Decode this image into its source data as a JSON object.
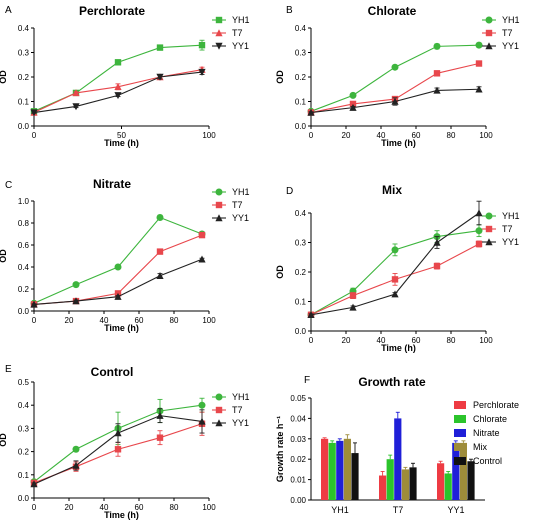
{
  "chart_data": [
    {
      "panel": "A",
      "type": "line",
      "title": "Perchlorate",
      "xlabel": "Time (h)",
      "ylabel": "OD",
      "xlim": [
        0,
        100
      ],
      "ylim": [
        0,
        0.4
      ],
      "xticks": [
        "0",
        "50",
        "100"
      ],
      "yticks": [
        "0.0",
        "0.1",
        "0.2",
        "0.3",
        "0.4"
      ],
      "legend": "right",
      "x": [
        0,
        24,
        48,
        72,
        96
      ],
      "series": [
        {
          "name": "YH1",
          "color": "#3db53d",
          "marker": "square",
          "values": [
            0.06,
            0.135,
            0.26,
            0.32,
            0.33
          ],
          "errors": [
            0.005,
            0.005,
            0.005,
            0.01,
            0.02
          ]
        },
        {
          "name": "T7",
          "color": "#e8474c",
          "marker": "triangle-up",
          "values": [
            0.055,
            0.135,
            0.16,
            0.2,
            0.23
          ],
          "errors": [
            0.005,
            0.005,
            0.012,
            0.01,
            0.01
          ]
        },
        {
          "name": "YY1",
          "color": "#222222",
          "marker": "triangle-down",
          "values": [
            0.055,
            0.08,
            0.125,
            0.2,
            0.22
          ],
          "errors": [
            0.003,
            0.005,
            0.005,
            0.008,
            0.01
          ]
        }
      ]
    },
    {
      "panel": "B",
      "type": "line",
      "title": "Chlorate",
      "xlabel": "Time (h)",
      "ylabel": "OD",
      "xlim": [
        0,
        100
      ],
      "ylim": [
        0,
        0.4
      ],
      "xticks": [
        "0",
        "20",
        "40",
        "60",
        "80",
        "100"
      ],
      "yticks": [
        "0.0",
        "0.1",
        "0.2",
        "0.3",
        "0.4"
      ],
      "legend": "right",
      "x": [
        0,
        24,
        48,
        72,
        96
      ],
      "series": [
        {
          "name": "YH1",
          "color": "#3db53d",
          "marker": "circle",
          "values": [
            0.06,
            0.125,
            0.24,
            0.325,
            0.33
          ],
          "errors": [
            0.003,
            0.005,
            0.005,
            0.01,
            0.005
          ]
        },
        {
          "name": "T7",
          "color": "#e8474c",
          "marker": "square",
          "values": [
            0.055,
            0.09,
            0.11,
            0.215,
            0.255
          ],
          "errors": [
            0.003,
            0.01,
            0.01,
            0.01,
            0.005
          ]
        },
        {
          "name": "YY1",
          "color": "#222222",
          "marker": "triangle-up",
          "values": [
            0.055,
            0.075,
            0.1,
            0.145,
            0.15
          ],
          "errors": [
            0.003,
            0.005,
            0.015,
            0.01,
            0.01
          ]
        }
      ]
    },
    {
      "panel": "C",
      "type": "line",
      "title": "Nitrate",
      "xlabel": "Time (h)",
      "ylabel": "OD",
      "xlim": [
        0,
        100
      ],
      "ylim": [
        0,
        1.0
      ],
      "xticks": [
        "0",
        "20",
        "40",
        "60",
        "80",
        "100"
      ],
      "yticks": [
        "0.0",
        "0.2",
        "0.4",
        "0.6",
        "0.8",
        "1.0"
      ],
      "legend": "right",
      "x": [
        0,
        24,
        48,
        72,
        96
      ],
      "series": [
        {
          "name": "YH1",
          "color": "#3db53d",
          "marker": "circle",
          "values": [
            0.07,
            0.24,
            0.4,
            0.85,
            0.7
          ],
          "errors": [
            0.005,
            0.01,
            0.01,
            0.02,
            0.02
          ]
        },
        {
          "name": "T7",
          "color": "#e8474c",
          "marker": "square",
          "values": [
            0.06,
            0.09,
            0.16,
            0.54,
            0.69
          ],
          "errors": [
            0.005,
            0.01,
            0.02,
            0.02,
            0.02
          ]
        },
        {
          "name": "YY1",
          "color": "#222222",
          "marker": "triangle-up",
          "values": [
            0.06,
            0.09,
            0.13,
            0.32,
            0.47
          ],
          "errors": [
            0.005,
            0.01,
            0.01,
            0.02,
            0.01
          ]
        }
      ]
    },
    {
      "panel": "D",
      "type": "line",
      "title": "Mix",
      "xlabel": "Time (h)",
      "ylabel": "OD",
      "xlim": [
        0,
        100
      ],
      "ylim": [
        0,
        0.4
      ],
      "xticks": [
        "0",
        "20",
        "40",
        "60",
        "80",
        "100"
      ],
      "yticks": [
        "0.0",
        "0.1",
        "0.2",
        "0.3",
        "0.4"
      ],
      "legend": "right",
      "x": [
        0,
        24,
        48,
        72,
        96
      ],
      "series": [
        {
          "name": "YH1",
          "color": "#3db53d",
          "marker": "circle",
          "values": [
            0.055,
            0.135,
            0.275,
            0.32,
            0.34
          ],
          "errors": [
            0.003,
            0.01,
            0.02,
            0.02,
            0.02
          ]
        },
        {
          "name": "T7",
          "color": "#e8474c",
          "marker": "square",
          "values": [
            0.055,
            0.12,
            0.175,
            0.22,
            0.295
          ],
          "errors": [
            0.003,
            0.01,
            0.02,
            0.01,
            0.01
          ]
        },
        {
          "name": "YY1",
          "color": "#222222",
          "marker": "triangle-up",
          "values": [
            0.055,
            0.08,
            0.125,
            0.3,
            0.4
          ],
          "errors": [
            0.003,
            0.005,
            0.005,
            0.02,
            0.04
          ]
        }
      ]
    },
    {
      "panel": "E",
      "type": "line",
      "title": "Control",
      "xlabel": "Time (h)",
      "ylabel": "OD",
      "xlim": [
        0,
        100
      ],
      "ylim": [
        0,
        0.5
      ],
      "xticks": [
        "0",
        "20",
        "40",
        "60",
        "80",
        "100"
      ],
      "yticks": [
        "0.0",
        "0.1",
        "0.2",
        "0.3",
        "0.4",
        "0.5"
      ],
      "legend": "right",
      "x": [
        0,
        24,
        48,
        72,
        96
      ],
      "series": [
        {
          "name": "YH1",
          "color": "#3db53d",
          "marker": "circle",
          "values": [
            0.07,
            0.21,
            0.3,
            0.375,
            0.4
          ],
          "errors": [
            0.005,
            0.01,
            0.07,
            0.05,
            0.03
          ]
        },
        {
          "name": "T7",
          "color": "#e8474c",
          "marker": "square",
          "values": [
            0.065,
            0.135,
            0.21,
            0.26,
            0.32
          ],
          "errors": [
            0.005,
            0.02,
            0.03,
            0.03,
            0.05
          ]
        },
        {
          "name": "YY1",
          "color": "#222222",
          "marker": "triangle-up",
          "values": [
            0.06,
            0.14,
            0.28,
            0.355,
            0.33
          ],
          "errors": [
            0.005,
            0.02,
            0.04,
            0.03,
            0.05
          ]
        }
      ]
    },
    {
      "panel": "F",
      "type": "bar",
      "title": "Growth rate",
      "xlabel": "",
      "ylabel": "Growth rate h⁻¹",
      "ylim": [
        0,
        0.05
      ],
      "yticks": [
        "0.00",
        "0.01",
        "0.02",
        "0.03",
        "0.04",
        "0.05"
      ],
      "legend": "right",
      "categories": [
        "YH1",
        "T7",
        "YY1"
      ],
      "series": [
        {
          "name": "Perchlorate",
          "color": "#ee3b43",
          "values": [
            0.03,
            0.012,
            0.018
          ],
          "errors": [
            0.0005,
            0.002,
            0.001
          ]
        },
        {
          "name": "Chlorate",
          "color": "#2bc42b",
          "values": [
            0.028,
            0.02,
            0.013
          ],
          "errors": [
            0.001,
            0.002,
            0.001
          ]
        },
        {
          "name": "Nitrate",
          "color": "#1f1fd8",
          "values": [
            0.029,
            0.04,
            0.028
          ],
          "errors": [
            0.001,
            0.003,
            0.001
          ]
        },
        {
          "name": "Mix",
          "color": "#9e8c3a",
          "values": [
            0.03,
            0.015,
            0.028
          ],
          "errors": [
            0.002,
            0.001,
            0.001
          ]
        },
        {
          "name": "Control",
          "color": "#111111",
          "values": [
            0.023,
            0.016,
            0.019
          ],
          "errors": [
            0.005,
            0.002,
            0.001
          ]
        }
      ]
    }
  ]
}
